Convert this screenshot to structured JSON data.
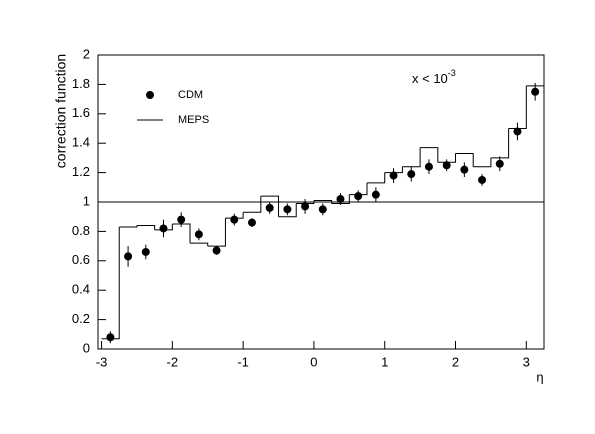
{
  "chart_data": {
    "type": "scatter",
    "x_label": "η",
    "y_label": "correction function",
    "annotation": {
      "text": "x < 10",
      "superscript": "-3"
    },
    "xlim": [
      -3.05,
      3.25
    ],
    "ylim": [
      0,
      2
    ],
    "xticks": [
      -3,
      -2,
      -1,
      0,
      1,
      2,
      3
    ],
    "yticks": [
      0,
      0.2,
      0.4,
      0.6,
      0.8,
      1,
      1.2,
      1.4,
      1.6,
      1.8,
      2
    ],
    "reference_line": 1,
    "series": [
      {
        "name": "CDM",
        "type": "errorbar",
        "color": "#000000",
        "x": [
          -2.875,
          -2.625,
          -2.375,
          -2.125,
          -1.875,
          -1.625,
          -1.375,
          -1.125,
          -0.875,
          -0.625,
          -0.375,
          -0.125,
          0.125,
          0.375,
          0.625,
          0.875,
          1.125,
          1.375,
          1.625,
          1.875,
          2.125,
          2.375,
          2.625,
          2.875,
          3.125
        ],
        "values": [
          0.08,
          0.63,
          0.66,
          0.82,
          0.88,
          0.78,
          0.67,
          0.88,
          0.86,
          0.96,
          0.95,
          0.97,
          0.95,
          1.02,
          1.04,
          1.05,
          1.18,
          1.19,
          1.24,
          1.25,
          1.22,
          1.15,
          1.26,
          1.48,
          1.75
        ],
        "errors": [
          0.04,
          0.07,
          0.05,
          0.06,
          0.05,
          0.04,
          0.03,
          0.04,
          0.03,
          0.04,
          0.04,
          0.05,
          0.04,
          0.04,
          0.04,
          0.05,
          0.05,
          0.05,
          0.05,
          0.04,
          0.05,
          0.04,
          0.05,
          0.06,
          0.06
        ]
      },
      {
        "name": "MEPS",
        "type": "step",
        "color": "#000000",
        "bins": [
          -3,
          -2.75,
          -2.5,
          -2.25,
          -2,
          -1.75,
          -1.5,
          -1.25,
          -1,
          -0.75,
          -0.5,
          -0.25,
          0,
          0.25,
          0.5,
          0.75,
          1,
          1.25,
          1.5,
          1.75,
          2,
          2.25,
          2.5,
          2.75,
          3,
          3.25
        ],
        "values": [
          0.07,
          0.83,
          0.84,
          0.81,
          0.85,
          0.72,
          0.7,
          0.89,
          0.93,
          1.04,
          0.9,
          0.99,
          1.01,
          0.99,
          1.05,
          1.13,
          1.2,
          1.24,
          1.37,
          1.27,
          1.33,
          1.24,
          1.3,
          1.5,
          1.79
        ]
      }
    ]
  }
}
